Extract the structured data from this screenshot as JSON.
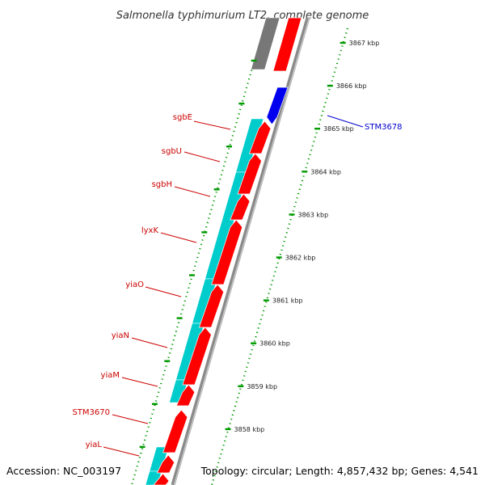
{
  "title": "Salmonella typhimurium LT2, complete genome",
  "footer": {
    "accession": "Accession: NC_003197",
    "topology": "Topology: circular; Length: 4,857,432 bp; Genes: 4,541"
  },
  "colors": {
    "background": "#ffffff",
    "forward_gene": "#ff0000",
    "reverse_gene": "#0000ee",
    "cds_block": "#00cccc",
    "grey_block": "#777777",
    "tick": "#009900",
    "backbone": "#888888",
    "label_red": "#cc0000",
    "label_blue": "#0000cc"
  },
  "scale": {
    "ticks": [
      {
        "kbp": 3867,
        "label": "3867 kbp"
      },
      {
        "kbp": 3866,
        "label": "3866 kbp"
      },
      {
        "kbp": 3865,
        "label": "3865 kbp"
      },
      {
        "kbp": 3864,
        "label": "3864 kbp"
      },
      {
        "kbp": 3863,
        "label": "3863 kbp"
      },
      {
        "kbp": 3862,
        "label": "3862 kbp"
      },
      {
        "kbp": 3861,
        "label": "3861 kbp"
      },
      {
        "kbp": 3860,
        "label": "3860 kbp"
      },
      {
        "kbp": 3859,
        "label": "3859 kbp"
      },
      {
        "kbp": 3858,
        "label": "3858 kbp"
      }
    ]
  },
  "genes": [
    {
      "name": "STM3678",
      "strand": "reverse",
      "color": "blue"
    },
    {
      "name": "sgbE",
      "strand": "forward",
      "color": "red"
    },
    {
      "name": "sgbU",
      "strand": "forward",
      "color": "red"
    },
    {
      "name": "sgbH",
      "strand": "forward",
      "color": "red"
    },
    {
      "name": "lyxK",
      "strand": "forward",
      "color": "red"
    },
    {
      "name": "yiaO",
      "strand": "forward",
      "color": "red"
    },
    {
      "name": "yiaN",
      "strand": "forward",
      "color": "red"
    },
    {
      "name": "yiaM",
      "strand": "forward",
      "color": "red"
    },
    {
      "name": "STM3670",
      "strand": "forward",
      "color": "red"
    },
    {
      "name": "yiaL",
      "strand": "forward",
      "color": "red"
    }
  ]
}
